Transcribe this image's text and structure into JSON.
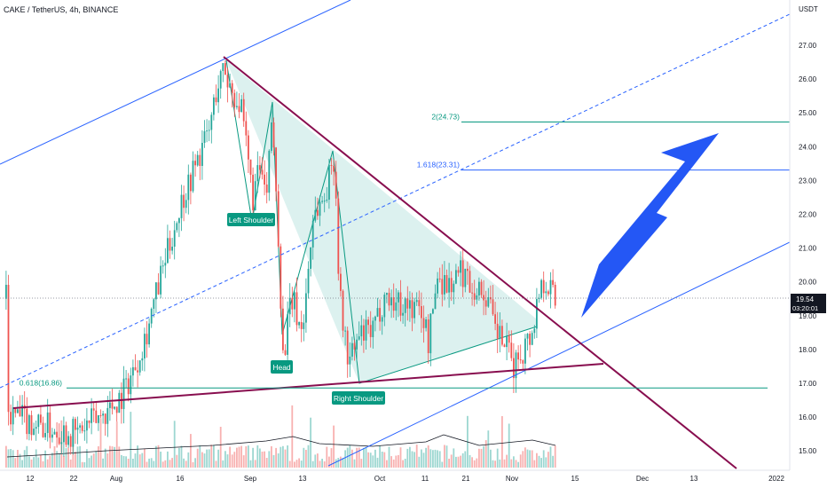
{
  "header": {
    "title": "CAKE / TetherUS, 4h, BINANCE"
  },
  "price_axis": {
    "unit": "USDT",
    "ticks": [
      "27.00",
      "26.00",
      "25.00",
      "24.00",
      "23.00",
      "22.00",
      "21.00",
      "20.00",
      "19.00",
      "18.00",
      "17.00",
      "16.00",
      "15.00"
    ],
    "last_price": "19.54",
    "countdown": "03:20:01"
  },
  "time_axis": {
    "ticks": [
      "12",
      "22",
      "Aug",
      "16",
      "Sep",
      "13",
      "Oct",
      "11",
      "21",
      "Nov",
      "15",
      "Dec",
      "13",
      "2022"
    ]
  },
  "fib_levels": [
    {
      "label": "2(24.73)",
      "value": 24.73
    },
    {
      "label": "1.618(23.31)",
      "value": 23.31
    },
    {
      "label": "0.618(16.86)",
      "value": 16.86
    }
  ],
  "pattern_labels": {
    "left": "Left Shoulder",
    "head": "Head",
    "right": "Right Shoulder"
  },
  "colors": {
    "up": "#26a69a",
    "down": "#ef5350",
    "resistance": "#880e4f",
    "channel": "#2962ff",
    "fib": "#089981",
    "arrow": "#2457f5",
    "fill": "#b2dfdb"
  },
  "chart_data": {
    "type": "candlestick",
    "symbol": "CAKE / TetherUS",
    "interval": "4h",
    "exchange": "BINANCE",
    "ylim": [
      14.6,
      27.5
    ],
    "x": [
      "12",
      "22",
      "Aug",
      "16",
      "Sep",
      "13",
      "Oct",
      "11",
      "21",
      "Nov"
    ],
    "close": [
      16.0,
      16.4,
      17.2,
      22.5,
      24.0,
      18.5,
      18.3,
      19.3,
      20.2,
      19.2
    ],
    "series": [
      {
        "name": "CAKE/USDT",
        "values": [
          16.0,
          16.4,
          17.2,
          22.5,
          24.0,
          18.5,
          18.3,
          19.3,
          20.2,
          19.2
        ]
      }
    ]
  }
}
